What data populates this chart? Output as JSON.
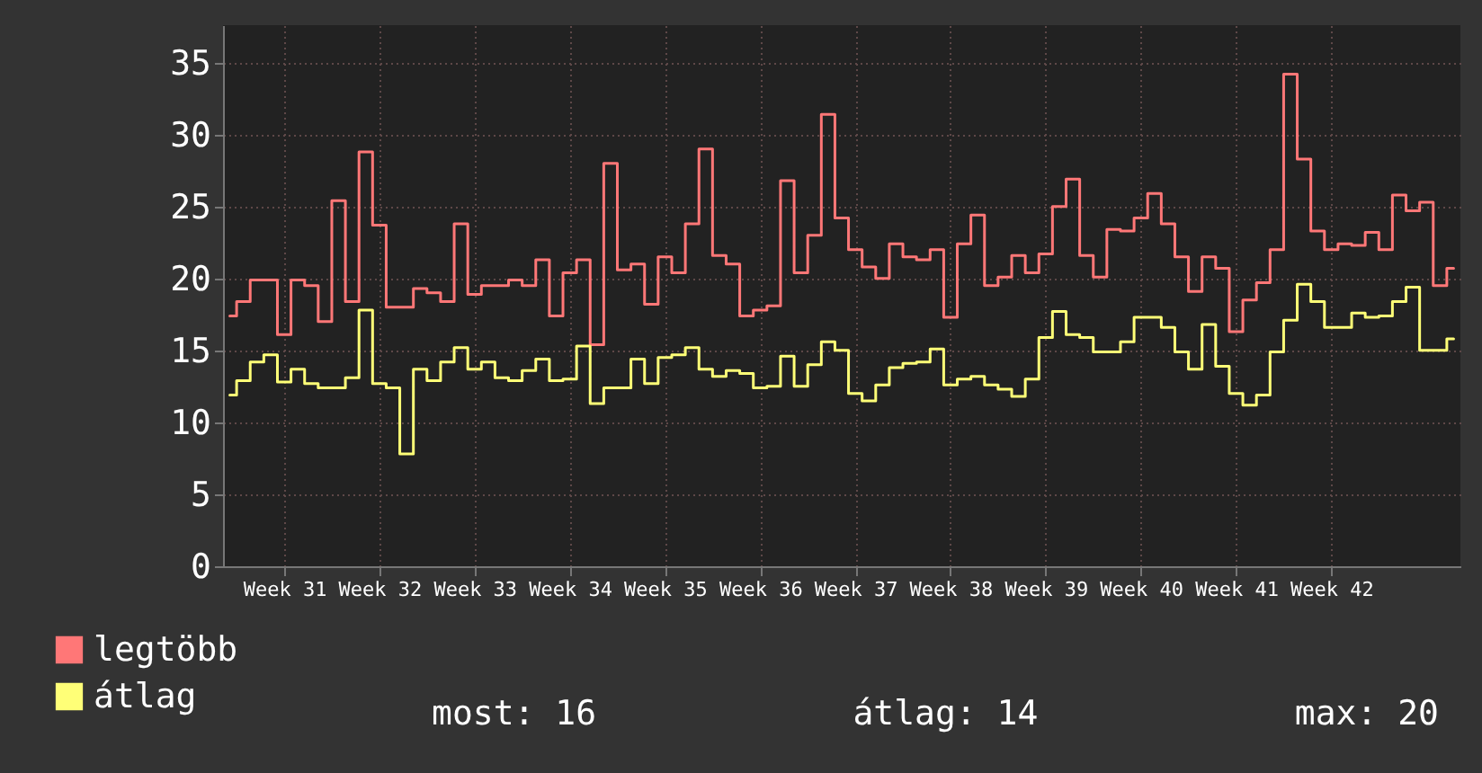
{
  "chart_data": {
    "type": "step",
    "categories": [
      null,
      null,
      null,
      null,
      "Week 31",
      null,
      null,
      null,
      null,
      null,
      null,
      "Week 32",
      null,
      null,
      null,
      null,
      null,
      null,
      "Week 33",
      null,
      null,
      null,
      null,
      null,
      null,
      "Week 34",
      null,
      null,
      null,
      null,
      null,
      null,
      "Week 35",
      null,
      null,
      null,
      null,
      null,
      null,
      "Week 36",
      null,
      null,
      null,
      null,
      null,
      null,
      "Week 37",
      null,
      null,
      null,
      null,
      null,
      null,
      "Week 38",
      null,
      null,
      null,
      null,
      null,
      null,
      "Week 39",
      null,
      null,
      null,
      null,
      null,
      null,
      "Week 40",
      null,
      null,
      null,
      null,
      null,
      null,
      "Week 41",
      null,
      null,
      null,
      null,
      null,
      null,
      "Week 42",
      null,
      null,
      null,
      null,
      null,
      null,
      null,
      null,
      null
    ],
    "series": [
      {
        "name": "legtöbb",
        "color": "#ff7777",
        "values": [
          17.4,
          18.4,
          19.9,
          19.9,
          16.1,
          19.9,
          19.5,
          17.0,
          25.4,
          18.4,
          28.8,
          23.7,
          18.0,
          18.0,
          19.3,
          19.0,
          18.4,
          23.8,
          18.9,
          19.5,
          19.5,
          19.9,
          19.5,
          21.3,
          17.4,
          20.4,
          21.3,
          15.4,
          28.0,
          20.6,
          21.0,
          18.2,
          21.5,
          20.4,
          23.8,
          29.0,
          21.6,
          21.0,
          17.4,
          17.8,
          18.1,
          26.8,
          20.4,
          23.0,
          31.4,
          24.2,
          22.0,
          20.8,
          20.0,
          22.4,
          21.5,
          21.3,
          22.0,
          17.3,
          22.4,
          24.4,
          19.5,
          20.1,
          21.6,
          20.4,
          21.7,
          25.0,
          26.9,
          21.6,
          20.1,
          23.4,
          23.3,
          24.2,
          25.9,
          23.8,
          21.5,
          19.1,
          21.5,
          20.7,
          16.3,
          18.5,
          19.7,
          22.0,
          34.2,
          28.3,
          23.3,
          22.0,
          22.4,
          22.3,
          23.2,
          22.0,
          25.8,
          24.7,
          25.3,
          19.5,
          20.7
        ]
      },
      {
        "name": "átlag",
        "color": "#ffff77",
        "values": [
          11.9,
          12.9,
          14.2,
          14.7,
          12.8,
          13.7,
          12.7,
          12.4,
          12.4,
          13.1,
          17.8,
          12.7,
          12.4,
          7.8,
          13.7,
          12.9,
          14.2,
          15.2,
          13.7,
          14.2,
          13.1,
          12.9,
          13.6,
          14.4,
          12.9,
          13.0,
          15.3,
          11.3,
          12.4,
          12.4,
          14.4,
          12.7,
          14.5,
          14.7,
          15.2,
          13.7,
          13.2,
          13.6,
          13.4,
          12.4,
          12.5,
          14.6,
          12.5,
          14.0,
          15.6,
          15.0,
          12.0,
          11.5,
          12.6,
          13.8,
          14.1,
          14.2,
          15.1,
          12.6,
          13.0,
          13.2,
          12.6,
          12.3,
          11.8,
          13.0,
          15.9,
          17.7,
          16.1,
          15.9,
          14.9,
          14.9,
          15.6,
          17.3,
          17.3,
          16.6,
          14.9,
          13.7,
          16.8,
          13.9,
          12.0,
          11.2,
          11.9,
          14.9,
          17.1,
          19.6,
          18.4,
          16.6,
          16.6,
          17.6,
          17.3,
          17.4,
          18.4,
          19.4,
          15.0,
          15.0,
          15.8
        ]
      }
    ],
    "ylim": [
      0,
      37.6
    ],
    "yticks": [
      0,
      5,
      10,
      15,
      20,
      25,
      30,
      35
    ],
    "grid": true,
    "legend": "bottom left",
    "annotations": [
      "most: 16",
      "átlag: 14",
      "max: 20"
    ]
  }
}
